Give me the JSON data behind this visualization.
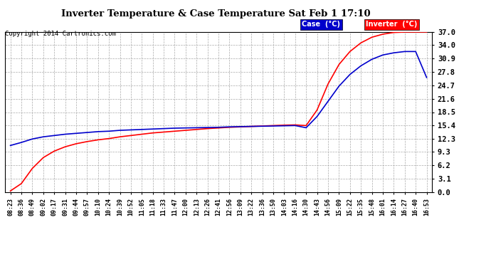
{
  "title": "Inverter Temperature & Case Temperature Sat Feb 1 17:10",
  "copyright": "Copyright 2014 Cartronics.com",
  "bg_color": "#ffffff",
  "plot_bg_color": "#ffffff",
  "grid_color": "#aaaaaa",
  "case_color": "#0000cc",
  "inverter_color": "#ff0000",
  "ylim": [
    0.0,
    37.0
  ],
  "yticks": [
    0.0,
    3.1,
    6.2,
    9.3,
    12.3,
    15.4,
    18.5,
    21.6,
    24.7,
    27.8,
    30.9,
    34.0,
    37.0
  ],
  "xtick_labels": [
    "08:23",
    "08:36",
    "08:49",
    "09:02",
    "09:17",
    "09:31",
    "09:44",
    "09:57",
    "10:10",
    "10:24",
    "10:39",
    "10:52",
    "11:05",
    "11:18",
    "11:33",
    "11:47",
    "12:00",
    "12:13",
    "12:26",
    "12:41",
    "12:56",
    "13:09",
    "13:22",
    "13:36",
    "13:50",
    "14:03",
    "14:16",
    "14:30",
    "14:43",
    "14:56",
    "15:09",
    "15:22",
    "15:35",
    "15:48",
    "16:01",
    "16:14",
    "16:27",
    "16:40",
    "16:53"
  ],
  "legend_case_label": "Case  (°C)",
  "legend_inverter_label": "Inverter  (°C)",
  "case_data": [
    10.8,
    11.5,
    12.3,
    12.8,
    13.1,
    13.4,
    13.6,
    13.8,
    14.0,
    14.1,
    14.3,
    14.4,
    14.5,
    14.6,
    14.7,
    14.8,
    14.85,
    14.9,
    14.95,
    15.0,
    15.1,
    15.15,
    15.2,
    15.25,
    15.3,
    15.35,
    15.4,
    14.9,
    17.5,
    21.0,
    24.5,
    27.2,
    29.2,
    30.7,
    31.7,
    32.2,
    32.5,
    32.5,
    26.5
  ],
  "inv_data": [
    0.3,
    2.0,
    5.5,
    8.0,
    9.5,
    10.5,
    11.2,
    11.7,
    12.1,
    12.4,
    12.8,
    13.1,
    13.4,
    13.7,
    13.9,
    14.1,
    14.3,
    14.5,
    14.7,
    14.85,
    15.0,
    15.1,
    15.2,
    15.3,
    15.4,
    15.5,
    15.55,
    15.4,
    19.0,
    25.0,
    29.5,
    32.5,
    34.5,
    35.8,
    36.5,
    36.9,
    37.0,
    37.0,
    37.0
  ]
}
